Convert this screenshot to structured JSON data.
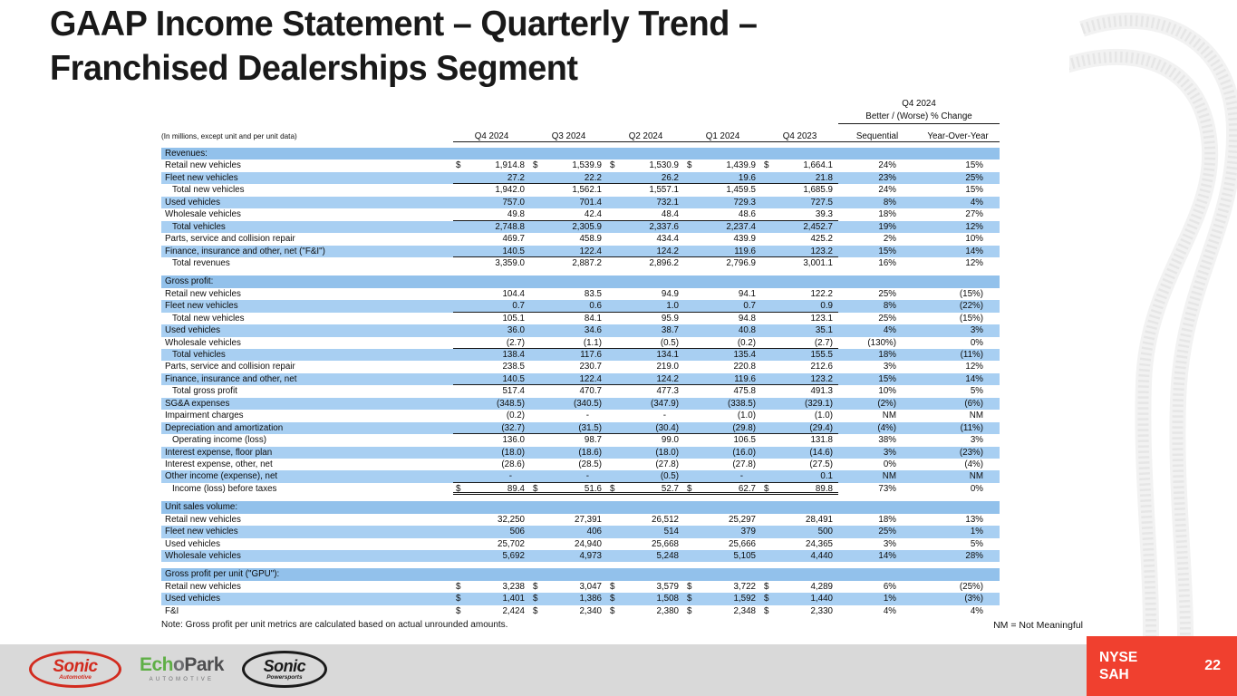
{
  "slide": {
    "title_line1": "GAAP Income Statement – Quarterly Trend –",
    "title_line2": "Franchised Dealerships Segment",
    "note": "Note: Gross profit per unit metrics are calculated based on actual unrounded amounts.",
    "nm_note": "NM = Not Meaningful",
    "ticker_line1": "NYSE",
    "ticker_line2": "SAH",
    "page_number": "22"
  },
  "colors": {
    "stripe_blue": "#A8CFF2",
    "section_blue": "#92C1EB",
    "accent_red": "#F0402F",
    "footer_gray": "#D9D9D9",
    "logo_red": "#D22B1F",
    "logo_green": "#5FAF46",
    "logo_gray": "#6D6E71",
    "logo_black": "#1A1A1A"
  },
  "footer": {
    "sonic_automotive": {
      "line1": "Sonic",
      "line2": "Automotive"
    },
    "echopark": {
      "part1": "Ech",
      "part2": "o",
      "part3": "Park",
      "sub": "AUTOMOTIVE"
    },
    "sonic_powersports": {
      "line1": "Sonic",
      "line2": "Powersports"
    }
  },
  "table": {
    "units_label": "(In millions, except unit and per unit data)",
    "currency_symbol": "$",
    "periods": [
      "Q4 2024",
      "Q3 2024",
      "Q2 2024",
      "Q1 2024",
      "Q4 2023"
    ],
    "change_group": {
      "title": "Q4 2024",
      "subtitle": "Better / (Worse) % Change",
      "cols": [
        "Sequential",
        "Year-Over-Year"
      ]
    },
    "sections": [
      {
        "name": "Revenues:",
        "rows": [
          {
            "label": "Retail new vehicles",
            "indent": 0,
            "dollar": true,
            "values": [
              "1,914.8",
              "1,539.9",
              "1,530.9",
              "1,439.9",
              "1,664.1"
            ],
            "seq": "24%",
            "yoy": "15%"
          },
          {
            "label": "Fleet new vehicles",
            "indent": 0,
            "values": [
              "27.2",
              "22.2",
              "26.2",
              "19.6",
              "21.8"
            ],
            "seq": "23%",
            "yoy": "25%",
            "rule": "single"
          },
          {
            "label": "Total new vehicles",
            "indent": 1,
            "values": [
              "1,942.0",
              "1,562.1",
              "1,557.1",
              "1,459.5",
              "1,685.9"
            ],
            "seq": "24%",
            "yoy": "15%"
          },
          {
            "label": "Used vehicles",
            "indent": 0,
            "values": [
              "757.0",
              "701.4",
              "732.1",
              "729.3",
              "727.5"
            ],
            "seq": "8%",
            "yoy": "4%"
          },
          {
            "label": "Wholesale vehicles",
            "indent": 0,
            "values": [
              "49.8",
              "42.4",
              "48.4",
              "48.6",
              "39.3"
            ],
            "seq": "18%",
            "yoy": "27%",
            "rule": "single"
          },
          {
            "label": "Total vehicles",
            "indent": 1,
            "values": [
              "2,748.8",
              "2,305.9",
              "2,337.6",
              "2,237.4",
              "2,452.7"
            ],
            "seq": "19%",
            "yoy": "12%"
          },
          {
            "label": "Parts, service and collision repair",
            "indent": 0,
            "values": [
              "469.7",
              "458.9",
              "434.4",
              "439.9",
              "425.2"
            ],
            "seq": "2%",
            "yoy": "10%"
          },
          {
            "label": "Finance, insurance and other, net (\"F&I\")",
            "indent": 0,
            "values": [
              "140.5",
              "122.4",
              "124.2",
              "119.6",
              "123.2"
            ],
            "seq": "15%",
            "yoy": "14%",
            "rule": "single"
          },
          {
            "label": "Total revenues",
            "indent": 1,
            "values": [
              "3,359.0",
              "2,887.2",
              "2,896.2",
              "2,796.9",
              "3,001.1"
            ],
            "seq": "16%",
            "yoy": "12%"
          }
        ]
      },
      {
        "name": "Gross profit:",
        "rows": [
          {
            "label": "Retail new vehicles",
            "indent": 0,
            "values": [
              "104.4",
              "83.5",
              "94.9",
              "94.1",
              "122.2"
            ],
            "seq": "25%",
            "yoy": "(15%)"
          },
          {
            "label": "Fleet new vehicles",
            "indent": 0,
            "values": [
              "0.7",
              "0.6",
              "1.0",
              "0.7",
              "0.9"
            ],
            "seq": "8%",
            "yoy": "(22%)",
            "rule": "single"
          },
          {
            "label": "Total new vehicles",
            "indent": 1,
            "values": [
              "105.1",
              "84.1",
              "95.9",
              "94.8",
              "123.1"
            ],
            "seq": "25%",
            "yoy": "(15%)"
          },
          {
            "label": "Used vehicles",
            "indent": 0,
            "values": [
              "36.0",
              "34.6",
              "38.7",
              "40.8",
              "35.1"
            ],
            "seq": "4%",
            "yoy": "3%"
          },
          {
            "label": "Wholesale vehicles",
            "indent": 0,
            "values": [
              "(2.7)",
              "(1.1)",
              "(0.5)",
              "(0.2)",
              "(2.7)"
            ],
            "seq": "(130%)",
            "yoy": "0%",
            "rule": "single"
          },
          {
            "label": "Total vehicles",
            "indent": 1,
            "values": [
              "138.4",
              "117.6",
              "134.1",
              "135.4",
              "155.5"
            ],
            "seq": "18%",
            "yoy": "(11%)"
          },
          {
            "label": "Parts, service and collision repair",
            "indent": 0,
            "values": [
              "238.5",
              "230.7",
              "219.0",
              "220.8",
              "212.6"
            ],
            "seq": "3%",
            "yoy": "12%"
          },
          {
            "label": "Finance, insurance and other, net",
            "indent": 0,
            "values": [
              "140.5",
              "122.4",
              "124.2",
              "119.6",
              "123.2"
            ],
            "seq": "15%",
            "yoy": "14%",
            "rule": "single"
          },
          {
            "label": "Total gross profit",
            "indent": 1,
            "values": [
              "517.4",
              "470.7",
              "477.3",
              "475.8",
              "491.3"
            ],
            "seq": "10%",
            "yoy": "5%"
          },
          {
            "label": "SG&A expenses",
            "indent": 0,
            "values": [
              "(348.5)",
              "(340.5)",
              "(347.9)",
              "(338.5)",
              "(329.1)"
            ],
            "seq": "(2%)",
            "yoy": "(6%)"
          },
          {
            "label": "Impairment charges",
            "indent": 0,
            "values": [
              "(0.2)",
              "-",
              "-",
              "(1.0)",
              "(1.0)"
            ],
            "seq": "NM",
            "yoy": "NM"
          },
          {
            "label": "Depreciation and amortization",
            "indent": 0,
            "values": [
              "(32.7)",
              "(31.5)",
              "(30.4)",
              "(29.8)",
              "(29.4)"
            ],
            "seq": "(4%)",
            "yoy": "(11%)",
            "rule": "single"
          },
          {
            "label": "Operating income (loss)",
            "indent": 1,
            "values": [
              "136.0",
              "98.7",
              "99.0",
              "106.5",
              "131.8"
            ],
            "seq": "38%",
            "yoy": "3%"
          },
          {
            "label": "Interest expense, floor plan",
            "indent": 0,
            "values": [
              "(18.0)",
              "(18.6)",
              "(18.0)",
              "(16.0)",
              "(14.6)"
            ],
            "seq": "3%",
            "yoy": "(23%)"
          },
          {
            "label": "Interest expense, other, net",
            "indent": 0,
            "values": [
              "(28.6)",
              "(28.5)",
              "(27.8)",
              "(27.8)",
              "(27.5)"
            ],
            "seq": "0%",
            "yoy": "(4%)"
          },
          {
            "label": "Other income (expense), net",
            "indent": 0,
            "values": [
              "-",
              "-",
              "(0.5)",
              "-",
              "0.1"
            ],
            "seq": "NM",
            "yoy": "NM",
            "rule": "single"
          },
          {
            "label": "Income (loss) before taxes",
            "indent": 1,
            "dollar": true,
            "values": [
              "89.4",
              "51.6",
              "52.7",
              "62.7",
              "89.8"
            ],
            "seq": "73%",
            "yoy": "0%",
            "rule": "double"
          }
        ]
      },
      {
        "name": "Unit sales volume:",
        "rows": [
          {
            "label": "Retail new vehicles",
            "indent": 0,
            "values": [
              "32,250",
              "27,391",
              "26,512",
              "25,297",
              "28,491"
            ],
            "seq": "18%",
            "yoy": "13%"
          },
          {
            "label": "Fleet new vehicles",
            "indent": 0,
            "values": [
              "506",
              "406",
              "514",
              "379",
              "500"
            ],
            "seq": "25%",
            "yoy": "1%"
          },
          {
            "label": "Used vehicles",
            "indent": 0,
            "values": [
              "25,702",
              "24,940",
              "25,668",
              "25,666",
              "24,365"
            ],
            "seq": "3%",
            "yoy": "5%"
          },
          {
            "label": "Wholesale vehicles",
            "indent": 0,
            "values": [
              "5,692",
              "4,973",
              "5,248",
              "5,105",
              "4,440"
            ],
            "seq": "14%",
            "yoy": "28%"
          }
        ]
      },
      {
        "name": "Gross profit per unit (\"GPU\"):",
        "rows": [
          {
            "label": "Retail new vehicles",
            "indent": 0,
            "dollar": true,
            "values": [
              "3,238",
              "3,047",
              "3,579",
              "3,722",
              "4,289"
            ],
            "seq": "6%",
            "yoy": "(25%)"
          },
          {
            "label": "Used vehicles",
            "indent": 0,
            "dollar": true,
            "values": [
              "1,401",
              "1,386",
              "1,508",
              "1,592",
              "1,440"
            ],
            "seq": "1%",
            "yoy": "(3%)"
          },
          {
            "label": "F&I",
            "indent": 0,
            "dollar": true,
            "values": [
              "2,424",
              "2,340",
              "2,380",
              "2,348",
              "2,330"
            ],
            "seq": "4%",
            "yoy": "4%"
          }
        ]
      }
    ]
  }
}
